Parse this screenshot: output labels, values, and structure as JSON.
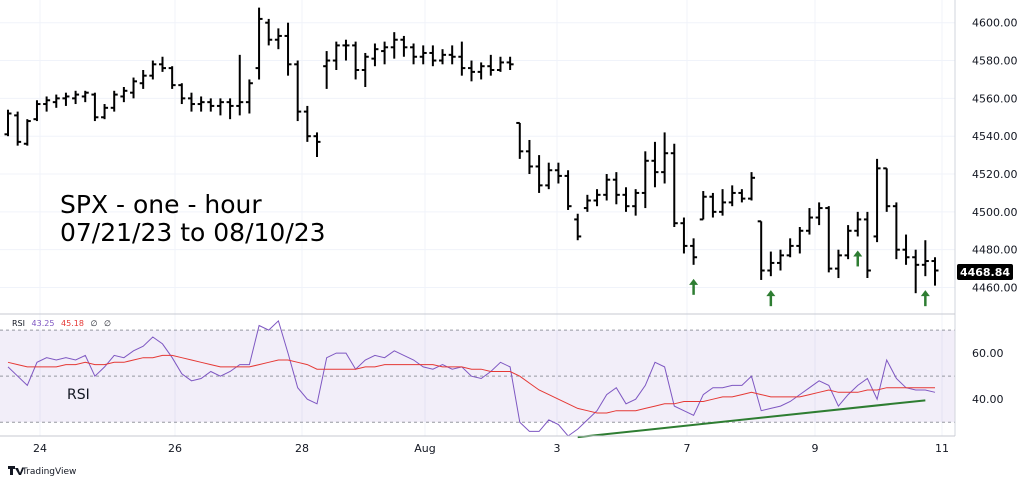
{
  "chart_data": {
    "type": "ohlc",
    "title_lines": [
      "SPX - one - hour",
      "07/21/23 to 08/10/23"
    ],
    "price_axis": {
      "ticks": [
        "4460.00",
        "4480.00",
        "4500.00",
        "4520.00",
        "4540.00",
        "4560.00",
        "4580.00",
        "4600.00"
      ],
      "range": [
        4446,
        4612
      ]
    },
    "last_price": "4468.84",
    "x_axis_ticks": [
      "24",
      "26",
      "28",
      "Aug",
      "3",
      "7",
      "9",
      "11"
    ],
    "bars": [
      [
        4541,
        4554,
        4540,
        4552
      ],
      [
        4551,
        4553,
        4535,
        4537
      ],
      [
        4536,
        4549,
        4535,
        4548
      ],
      [
        4549,
        4559,
        4548,
        4557
      ],
      [
        4557,
        4561,
        4553,
        4559
      ],
      [
        4558,
        4562,
        4555,
        4560
      ],
      [
        4560,
        4563,
        4556,
        4561
      ],
      [
        4560,
        4564,
        4557,
        4562
      ],
      [
        4561,
        4564,
        4558,
        4563
      ],
      [
        4562,
        4563,
        4548,
        4550
      ],
      [
        4550,
        4557,
        4549,
        4555
      ],
      [
        4555,
        4564,
        4553,
        4562
      ],
      [
        4561,
        4566,
        4558,
        4564
      ],
      [
        4563,
        4571,
        4560,
        4569
      ],
      [
        4568,
        4575,
        4565,
        4572
      ],
      [
        4572,
        4580,
        4570,
        4578
      ],
      [
        4578,
        4582,
        4574,
        4576
      ],
      [
        4576,
        4577,
        4565,
        4567
      ],
      [
        4567,
        4568,
        4557,
        4560
      ],
      [
        4560,
        4563,
        4553,
        4557
      ],
      [
        4557,
        4561,
        4553,
        4558
      ],
      [
        4558,
        4560,
        4553,
        4556
      ],
      [
        4556,
        4560,
        4551,
        4558
      ],
      [
        4558,
        4560,
        4549,
        4556
      ],
      [
        4556,
        4583,
        4551,
        4558
      ],
      [
        4558,
        4570,
        4552,
        4568
      ],
      [
        4576,
        4608,
        4570,
        4602
      ],
      [
        4600,
        4602,
        4588,
        4591
      ],
      [
        4591,
        4597,
        4586,
        4593
      ],
      [
        4593,
        4600,
        4572,
        4578
      ],
      [
        4578,
        4580,
        4548,
        4553
      ],
      [
        4553,
        4556,
        4537,
        4540
      ],
      [
        4540,
        4542,
        4529,
        4537
      ],
      [
        4577,
        4585,
        4565,
        4580
      ],
      [
        4580,
        4590,
        4575,
        4588
      ],
      [
        4588,
        4591,
        4580,
        4588
      ],
      [
        4588,
        4590,
        4570,
        4575
      ],
      [
        4575,
        4584,
        4566,
        4582
      ],
      [
        4581,
        4589,
        4577,
        4586
      ],
      [
        4585,
        4590,
        4578,
        4587
      ],
      [
        4587,
        4595,
        4581,
        4591
      ],
      [
        4591,
        4593,
        4582,
        4587
      ],
      [
        4587,
        4589,
        4578,
        4582
      ],
      [
        4582,
        4588,
        4578,
        4584
      ],
      [
        4584,
        4588,
        4577,
        4580
      ],
      [
        4580,
        4586,
        4578,
        4583
      ],
      [
        4583,
        4588,
        4578,
        4582
      ],
      [
        4582,
        4590,
        4572,
        4576
      ],
      [
        4576,
        4580,
        4569,
        4574
      ],
      [
        4574,
        4579,
        4570,
        4577
      ],
      [
        4577,
        4583,
        4572,
        4575
      ],
      [
        4575,
        4582,
        4574,
        4579
      ],
      [
        4579,
        4582,
        4575,
        4578
      ],
      [
        4547,
        4547,
        4528,
        4532
      ],
      [
        4532,
        4538,
        4520,
        4524
      ],
      [
        4524,
        4530,
        4510,
        4514
      ],
      [
        4514,
        4526,
        4512,
        4522
      ],
      [
        4522,
        4526,
        4515,
        4519
      ],
      [
        4519,
        4522,
        4501,
        4503
      ],
      [
        4496,
        4499,
        4485,
        4487
      ],
      [
        4502,
        4509,
        4500,
        4506
      ],
      [
        4506,
        4512,
        4503,
        4509
      ],
      [
        4509,
        4520,
        4506,
        4517
      ],
      [
        4517,
        4521,
        4504,
        4509
      ],
      [
        4509,
        4513,
        4500,
        4503
      ],
      [
        4503,
        4512,
        4498,
        4510
      ],
      [
        4510,
        4532,
        4502,
        4527
      ],
      [
        4527,
        4537,
        4513,
        4521
      ],
      [
        4521,
        4542,
        4515,
        4531
      ],
      [
        4531,
        4536,
        4492,
        4494
      ],
      [
        4494,
        4497,
        4478,
        4482
      ],
      [
        4482,
        4486,
        4472,
        4476
      ],
      [
        4496,
        4511,
        4496,
        4508
      ],
      [
        4508,
        4510,
        4497,
        4500
      ],
      [
        4500,
        4512,
        4498,
        4505
      ],
      [
        4505,
        4514,
        4503,
        4510
      ],
      [
        4510,
        4512,
        4505,
        4507
      ],
      [
        4507,
        4521,
        4506,
        4518
      ],
      [
        4495,
        4495,
        4464,
        4469
      ],
      [
        4469,
        4479,
        4466,
        4473
      ],
      [
        4473,
        4480,
        4469,
        4477
      ],
      [
        4477,
        4486,
        4476,
        4482
      ],
      [
        4482,
        4492,
        4478,
        4490
      ],
      [
        4490,
        4502,
        4488,
        4497
      ],
      [
        4497,
        4505,
        4493,
        4502
      ],
      [
        4502,
        4503,
        4468,
        4470
      ],
      [
        4470,
        4480,
        4465,
        4477
      ],
      [
        4477,
        4493,
        4475,
        4490
      ],
      [
        4490,
        4500,
        4487,
        4496
      ],
      [
        4496,
        4500,
        4465,
        4469
      ],
      [
        4487,
        4528,
        4484,
        4523
      ],
      [
        4523,
        4523,
        4500,
        4503
      ],
      [
        4503,
        4505,
        4475,
        4480
      ],
      [
        4480,
        4488,
        4472,
        4476
      ],
      [
        4476,
        4480,
        4457,
        4472
      ],
      [
        4472,
        4485,
        4466,
        4474
      ],
      [
        4474,
        4476,
        4461,
        4469
      ]
    ],
    "rsi": {
      "label": "RSI",
      "params": [
        "RSI",
        "43.25",
        "45.18",
        "∅",
        "∅"
      ],
      "colors": {
        "rsi": "#7e57c2",
        "ma": "#e53935"
      },
      "range": [
        24,
        77
      ],
      "bands": [
        30,
        50,
        70
      ],
      "ticks": [
        "40.00",
        "60.00"
      ],
      "values": [
        54,
        50,
        46,
        56,
        58,
        57,
        58,
        57,
        59,
        50,
        54,
        59,
        58,
        61,
        63,
        67,
        64,
        58,
        51,
        48,
        49,
        52,
        50,
        52,
        55,
        55,
        72,
        70,
        74,
        60,
        45,
        40,
        38,
        58,
        60,
        60,
        53,
        57,
        59,
        58,
        61,
        59,
        57,
        54,
        53,
        55,
        53,
        54,
        50,
        49,
        52,
        56,
        54,
        30,
        26,
        26,
        31,
        29,
        24,
        27,
        31,
        35,
        42,
        45,
        38,
        40,
        46,
        56,
        54,
        37,
        35,
        33,
        42,
        45,
        45,
        46,
        46,
        50,
        35,
        36,
        37,
        39,
        42,
        45,
        48,
        46,
        37,
        42,
        46,
        49,
        40,
        57,
        49,
        45,
        44,
        44,
        43
      ],
      "ma_values": [
        56,
        55,
        54,
        54,
        54,
        54,
        55,
        55,
        56,
        55,
        55,
        56,
        56,
        57,
        58,
        58,
        59,
        59,
        58,
        57,
        56,
        55,
        54,
        54,
        54,
        54,
        55,
        56,
        57,
        57,
        56,
        55,
        53,
        53,
        53,
        53,
        53,
        54,
        54,
        55,
        55,
        55,
        55,
        55,
        55,
        54,
        54,
        54,
        53,
        53,
        52,
        52,
        52,
        50,
        47,
        44,
        42,
        40,
        38,
        36,
        35,
        34,
        34,
        35,
        35,
        35,
        36,
        37,
        38,
        38,
        39,
        39,
        39,
        40,
        41,
        41,
        42,
        43,
        42,
        41,
        41,
        41,
        41,
        42,
        43,
        44,
        43,
        43,
        43,
        44,
        44,
        45,
        45,
        45,
        45,
        45,
        45
      ]
    },
    "arrows_at_bars": [
      71,
      79,
      88,
      95
    ],
    "divergence_line": {
      "from": [
        59,
        23.5
      ],
      "to": [
        95,
        39.5
      ]
    },
    "colors": {
      "bars": "#000000",
      "arrows": "#2e7d32",
      "divergence": "#2e7d32",
      "rsi_band_fill": "#7e57c2",
      "price_tag": "#000000"
    }
  },
  "branding": "TradingView"
}
